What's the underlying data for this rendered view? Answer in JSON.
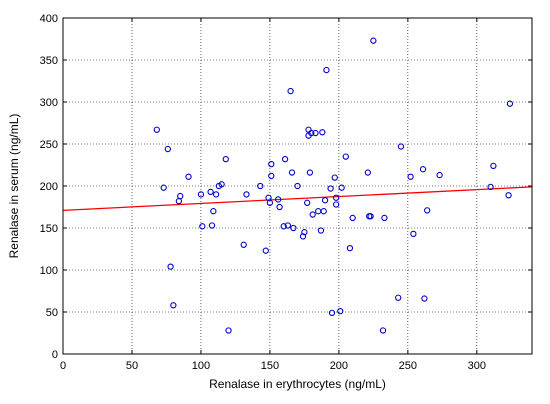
{
  "chart_data": {
    "type": "scatter",
    "title": "",
    "xlabel": "Renalase in erythrocytes (ng/mL)",
    "ylabel": "Renalase in serum (ng/mL)",
    "xlim": [
      0,
      340
    ],
    "ylim": [
      0,
      400
    ],
    "x_ticks": [
      0,
      50,
      100,
      150,
      200,
      250,
      300
    ],
    "y_ticks": [
      0,
      50,
      100,
      150,
      200,
      250,
      300,
      350,
      400
    ],
    "grid": true,
    "series": [
      {
        "points": [
          [
            68,
            267
          ],
          [
            73,
            198
          ],
          [
            76,
            244
          ],
          [
            78,
            104
          ],
          [
            80,
            58
          ],
          [
            84,
            182
          ],
          [
            85,
            188
          ],
          [
            91,
            211
          ],
          [
            100,
            190
          ],
          [
            101,
            152
          ],
          [
            107,
            193
          ],
          [
            108,
            153
          ],
          [
            109,
            170
          ],
          [
            111,
            190
          ],
          [
            113,
            200
          ],
          [
            115,
            202
          ],
          [
            118,
            232
          ],
          [
            120,
            28
          ],
          [
            131,
            130
          ],
          [
            133,
            190
          ],
          [
            143,
            200
          ],
          [
            147,
            123
          ],
          [
            149,
            186
          ],
          [
            150,
            180
          ],
          [
            151,
            226
          ],
          [
            151,
            212
          ],
          [
            156,
            184
          ],
          [
            157,
            175
          ],
          [
            160,
            152
          ],
          [
            161,
            232
          ],
          [
            163,
            153
          ],
          [
            165,
            313
          ],
          [
            166,
            216
          ],
          [
            167,
            150
          ],
          [
            170,
            200
          ],
          [
            174,
            140
          ],
          [
            175,
            145
          ],
          [
            177,
            180
          ],
          [
            178,
            267
          ],
          [
            178,
            260
          ],
          [
            179,
            216
          ],
          [
            180,
            263
          ],
          [
            181,
            166
          ],
          [
            183,
            263
          ],
          [
            185,
            170
          ],
          [
            187,
            147
          ],
          [
            188,
            264
          ],
          [
            189,
            170
          ],
          [
            190,
            183
          ],
          [
            191,
            338
          ],
          [
            194,
            197
          ],
          [
            195,
            49
          ],
          [
            197,
            210
          ],
          [
            198,
            186
          ],
          [
            198,
            178
          ],
          [
            201,
            51
          ],
          [
            202,
            198
          ],
          [
            205,
            235
          ],
          [
            208,
            126
          ],
          [
            210,
            162
          ],
          [
            221,
            216
          ],
          [
            222,
            164
          ],
          [
            223,
            164
          ],
          [
            225,
            373
          ],
          [
            232,
            28
          ],
          [
            233,
            162
          ],
          [
            243,
            67
          ],
          [
            245,
            247
          ],
          [
            252,
            211
          ],
          [
            254,
            143
          ],
          [
            261,
            220
          ],
          [
            262,
            66
          ],
          [
            264,
            171
          ],
          [
            273,
            213
          ],
          [
            310,
            199
          ],
          [
            312,
            224
          ],
          [
            323,
            189
          ],
          [
            324,
            298
          ]
        ]
      }
    ],
    "trendline": {
      "x": [
        0,
        340
      ],
      "y": [
        171,
        199
      ],
      "color": "#ff0000"
    },
    "marker_color": "#0000cc"
  }
}
